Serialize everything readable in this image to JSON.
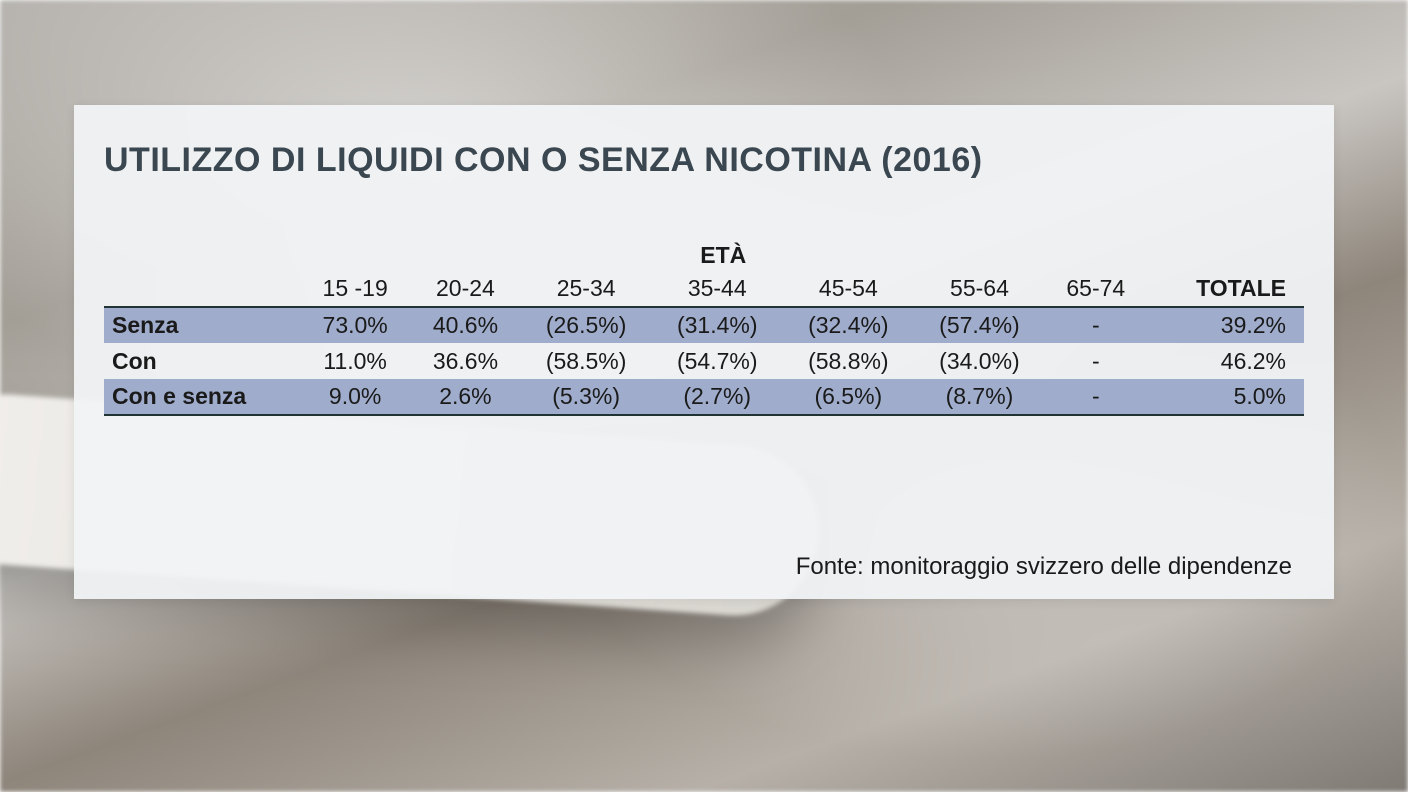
{
  "panel": {
    "background_color": "#f1f3f5ee",
    "title": "UTILIZZO DI LIQUIDI CON O SENZA NICOTINA (2016)",
    "title_color": "#3a4750",
    "title_fontsize": 34
  },
  "table": {
    "type": "table",
    "super_header": "ETÀ",
    "total_header": "TOTALE",
    "columns": [
      "15 -19",
      "20-24",
      "25-34",
      "35-44",
      "45-54",
      "55-64",
      "65-74"
    ],
    "header_fontsize": 23,
    "cell_fontsize": 23,
    "row_shaded_color": "#9faccb",
    "border_color": "#223333",
    "rows": [
      {
        "label": "Senza",
        "shaded": true,
        "values": [
          "73.0%",
          "40.6%",
          "(26.5%)",
          "(31.4%)",
          "(32.4%)",
          "(57.4%)",
          "-"
        ],
        "total": "39.2%"
      },
      {
        "label": "Con",
        "shaded": false,
        "values": [
          "11.0%",
          "36.6%",
          "(58.5%)",
          "(54.7%)",
          "(58.8%)",
          "(34.0%)",
          "-"
        ],
        "total": "46.2%"
      },
      {
        "label": "Con e senza",
        "shaded": true,
        "values": [
          "9.0%",
          "2.6%",
          "(5.3%)",
          "(2.7%)",
          "(6.5%)",
          "(8.7%)",
          "-"
        ],
        "total": "5.0%"
      }
    ]
  },
  "source": {
    "text": "Fonte: monitoraggio svizzero delle dipendenze",
    "fontsize": 24,
    "color": "#1a1a1a"
  }
}
